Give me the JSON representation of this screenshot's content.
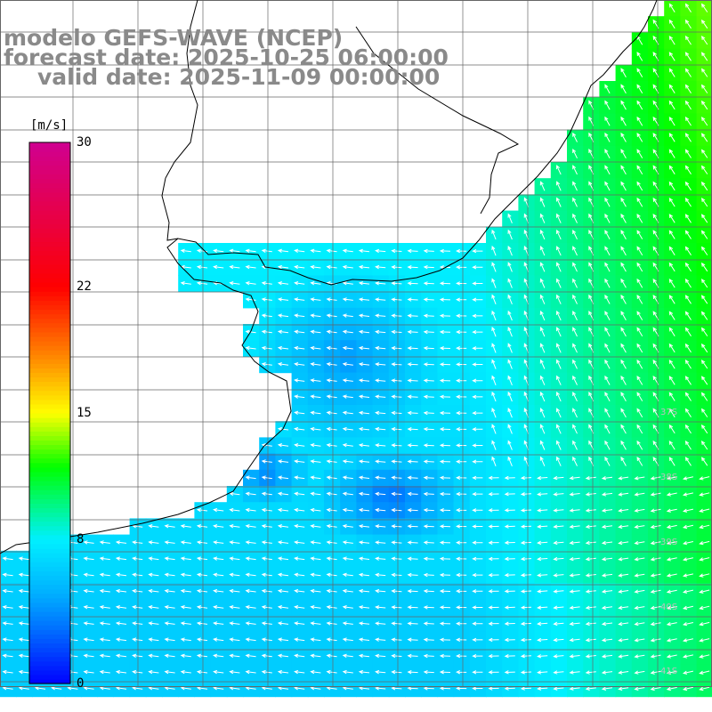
{
  "title": {
    "line1": "modelo GEFS-WAVE (NCEP)",
    "line2": "forecast date: 2025-10-25 06:00:00",
    "line3": "valid date: 2025-11-09 00:00:00"
  },
  "colorbar": {
    "unit": "[m/s]",
    "ticks": [
      {
        "value": 30,
        "label": "30"
      },
      {
        "value": 22,
        "label": "22"
      },
      {
        "value": 15,
        "label": "15"
      },
      {
        "value": 8,
        "label": "8"
      },
      {
        "value": 0,
        "label": "0"
      }
    ],
    "range": [
      0,
      30
    ],
    "colors": [
      "#0000ff",
      "#0080ff",
      "#00e8ff",
      "#00ff00",
      "#ffff00",
      "#ff8000",
      "#ff0000",
      "#d00090"
    ]
  },
  "latitude_labels": [
    "37S",
    "38S",
    "39S",
    "40S",
    "41S"
  ],
  "colors": {
    "land": "#ffffff",
    "coastline": "#000000",
    "grid": "#666666",
    "arrow": "#ffffff",
    "title": "#8a8a8a"
  }
}
